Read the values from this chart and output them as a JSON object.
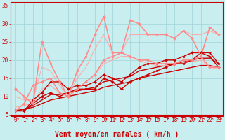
{
  "background_color": "#c8eef0",
  "grid_color": "#a0d4d8",
  "xlabel": "Vent moyen/en rafales ( km/h )",
  "xlabel_color": "#cc0000",
  "xlabel_fontsize": 7,
  "tick_color": "#cc0000",
  "tick_fontsize": 5.5,
  "xlim": [
    -0.5,
    23.5
  ],
  "ylim": [
    5,
    36
  ],
  "yticks": [
    5,
    10,
    15,
    20,
    25,
    30,
    35
  ],
  "xticks": [
    0,
    1,
    2,
    3,
    4,
    5,
    6,
    7,
    8,
    9,
    10,
    11,
    12,
    13,
    14,
    15,
    16,
    17,
    18,
    19,
    20,
    21,
    22,
    23
  ],
  "lines": [
    {
      "x": [
        0,
        1,
        2,
        3,
        4,
        5,
        6,
        7,
        8,
        9,
        10,
        11,
        12,
        13,
        14,
        15,
        16,
        17,
        18,
        19,
        20,
        21,
        22,
        23
      ],
      "y": [
        6,
        6,
        8,
        10,
        11,
        10,
        11,
        12,
        12,
        12,
        15,
        14,
        12,
        14,
        15,
        16,
        17,
        18,
        19,
        19,
        20,
        22,
        21,
        18
      ],
      "color": "#cc0000",
      "lw": 1.0,
      "marker": "D",
      "ms": 2.0
    },
    {
      "x": [
        0,
        1,
        2,
        3,
        4,
        5,
        6,
        7,
        8,
        9,
        10,
        11,
        12,
        13,
        14,
        15,
        16,
        17,
        18,
        19,
        20,
        21,
        22,
        23
      ],
      "y": [
        6,
        6.5,
        7,
        8,
        9,
        9.5,
        10,
        10.5,
        11,
        11.5,
        12.5,
        13,
        13.5,
        14,
        15,
        15.5,
        16,
        16.5,
        17,
        17.5,
        18,
        18.5,
        18.5,
        18
      ],
      "color": "#cc0000",
      "lw": 1.0,
      "marker": null,
      "ms": 0
    },
    {
      "x": [
        0,
        1,
        2,
        3,
        4,
        5,
        6,
        7,
        8,
        9,
        10,
        11,
        12,
        13,
        14,
        15,
        16,
        17,
        18,
        19,
        20,
        21,
        22,
        23
      ],
      "y": [
        6,
        6.5,
        7.5,
        9,
        10.5,
        10.5,
        11,
        11.5,
        12,
        12.5,
        14,
        14.5,
        15,
        15.5,
        17,
        17.5,
        18,
        18.5,
        19,
        19.5,
        20,
        20.5,
        20.5,
        19
      ],
      "color": "#cc0000",
      "lw": 1.0,
      "marker": null,
      "ms": 0
    },
    {
      "x": [
        0,
        1,
        2,
        3,
        4,
        5,
        6,
        7,
        8,
        9,
        10,
        11,
        12,
        13,
        14,
        15,
        16,
        17,
        18,
        19,
        20,
        21,
        22,
        23
      ],
      "y": [
        6,
        6,
        9,
        11,
        14,
        14,
        12,
        13,
        13,
        14,
        16,
        15,
        14,
        16,
        18,
        19,
        19,
        20,
        20,
        21,
        22,
        22,
        22,
        19
      ],
      "color": "#cc0000",
      "lw": 1.0,
      "marker": "D",
      "ms": 2.0
    },
    {
      "x": [
        0,
        1,
        2,
        3,
        4,
        5,
        6,
        7,
        8,
        9,
        10,
        11,
        12,
        13,
        14,
        15,
        16,
        17,
        18,
        19,
        20,
        21,
        22,
        23
      ],
      "y": [
        12,
        10,
        8,
        25,
        19,
        14,
        10,
        17,
        21,
        27,
        32,
        22,
        22,
        31,
        30,
        27,
        27,
        27,
        26,
        28,
        26,
        21,
        29,
        27
      ],
      "color": "#ff8888",
      "lw": 1.0,
      "marker": "D",
      "ms": 2.0
    },
    {
      "x": [
        0,
        1,
        2,
        3,
        4,
        5,
        6,
        7,
        8,
        9,
        10,
        11,
        12,
        13,
        14,
        15,
        16,
        17,
        18,
        19,
        20,
        21,
        22,
        23
      ],
      "y": [
        12,
        10,
        8,
        25,
        19,
        14,
        10,
        17,
        21,
        27,
        32,
        22,
        22,
        31,
        30,
        27,
        27,
        27,
        26,
        28,
        26,
        21,
        29,
        27
      ],
      "color": "#ffaaaa",
      "lw": 0.8,
      "marker": null,
      "ms": 0
    },
    {
      "x": [
        0,
        1,
        2,
        3,
        4,
        5,
        6,
        7,
        8,
        9,
        10,
        11,
        12,
        13,
        14,
        15,
        16,
        17,
        18,
        19,
        20,
        21,
        22,
        23
      ],
      "y": [
        6,
        8,
        13,
        14,
        15,
        11,
        10,
        12,
        14,
        16,
        20,
        21,
        22,
        21,
        20,
        20,
        19,
        19,
        19,
        20,
        20,
        21,
        18,
        18
      ],
      "color": "#ff8888",
      "lw": 1.0,
      "marker": "D",
      "ms": 2.0
    },
    {
      "x": [
        0,
        1,
        2,
        3,
        4,
        5,
        6,
        7,
        8,
        9,
        10,
        11,
        12,
        13,
        14,
        15,
        16,
        17,
        18,
        19,
        20,
        21,
        22,
        23
      ],
      "y": [
        6,
        8,
        13,
        14,
        15,
        11,
        10,
        12,
        14,
        16,
        20,
        21,
        22,
        21,
        20,
        20,
        19,
        19,
        19,
        20,
        20,
        21,
        18,
        18
      ],
      "color": "#ffaaaa",
      "lw": 0.8,
      "marker": null,
      "ms": 0
    },
    {
      "x": [
        0,
        1,
        2,
        3,
        4,
        5,
        6,
        7,
        8,
        9,
        10,
        11,
        12,
        13,
        14,
        15,
        16,
        17,
        18,
        19,
        20,
        21,
        22,
        23
      ],
      "y": [
        10,
        9,
        9,
        18,
        17,
        13,
        10,
        15,
        18,
        23,
        27,
        22,
        22,
        27,
        27,
        27,
        27,
        27,
        26,
        28,
        27,
        27,
        28,
        27
      ],
      "color": "#ffaaaa",
      "lw": 0.8,
      "marker": null,
      "ms": 0
    },
    {
      "x": [
        0,
        1,
        2,
        3,
        4,
        5,
        6,
        7,
        8,
        9,
        10,
        11,
        12,
        13,
        14,
        15,
        16,
        17,
        18,
        19,
        20,
        21,
        22,
        23
      ],
      "y": [
        7,
        7.5,
        8,
        12,
        13,
        11,
        10,
        12,
        14,
        16,
        19,
        20,
        21,
        21,
        20,
        19,
        18.5,
        18.5,
        18.5,
        20,
        19.5,
        20,
        18,
        17.5
      ],
      "color": "#ffaaaa",
      "lw": 0.8,
      "marker": null,
      "ms": 0
    }
  ]
}
